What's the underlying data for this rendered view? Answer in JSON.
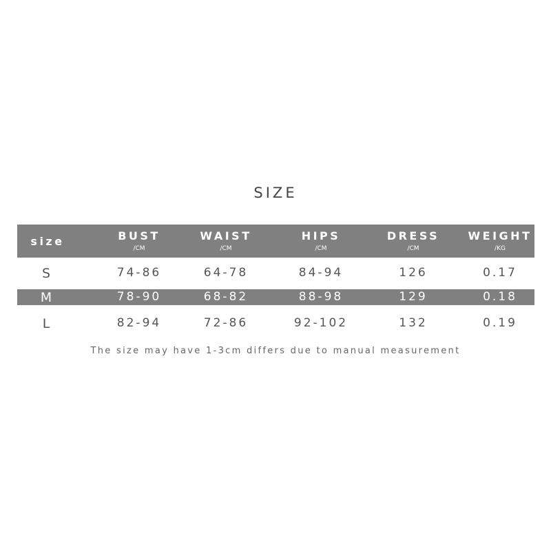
{
  "title": "SIZE",
  "header": {
    "size_label": "size",
    "columns": [
      {
        "name": "BUST",
        "unit": "/CM"
      },
      {
        "name": "WAIST",
        "unit": "/CM"
      },
      {
        "name": "HIPS",
        "unit": "/CM"
      },
      {
        "name": "DRESS",
        "unit": "/CM"
      },
      {
        "name": "WEIGHT",
        "unit": "/KG"
      }
    ]
  },
  "rows": [
    {
      "size": "S",
      "values": [
        "74-86",
        "64-78",
        "84-94",
        "126",
        "0.17"
      ]
    },
    {
      "size": "M",
      "values": [
        "78-90",
        "68-82",
        "88-98",
        "129",
        "0.18"
      ]
    },
    {
      "size": "L",
      "values": [
        "82-94",
        "72-86",
        "92-102",
        "132",
        "0.19"
      ]
    }
  ],
  "note": "The size may have 1-3cm differs due to manual measurement",
  "colors": {
    "band": "#808080",
    "text": "#555555"
  }
}
